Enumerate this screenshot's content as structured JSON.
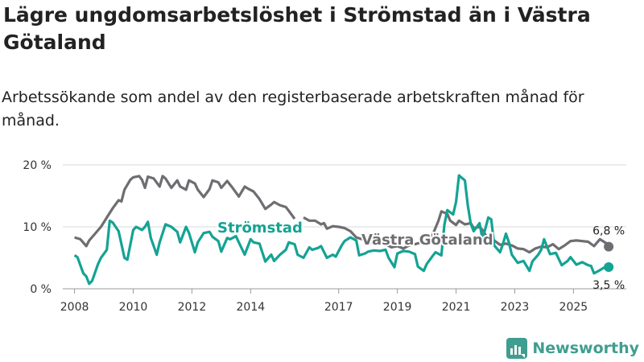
{
  "header": {
    "title": "Lägre ungdomsarbetslöshet i Strömstad än i Västra Götaland",
    "subtitle": "Arbetssökande som andel av den registerbaserade arbetskraften månad för månad."
  },
  "brand": {
    "name": "Newsworthy"
  },
  "colors": {
    "stromstad": "#14a394",
    "vastra": "#6e6e72",
    "grid": "#d8d8d8"
  },
  "chart_data": {
    "type": "line",
    "title": "Lägre ungdomsarbetslöshet i Strömstad än i Västra Götaland",
    "xlabel": "",
    "ylabel": "",
    "xlim": [
      2007.6,
      2026.8
    ],
    "ylim": [
      0,
      20
    ],
    "yticks": [
      0,
      10,
      20
    ],
    "ytick_labels": [
      "0 %",
      "10 %",
      "20 %"
    ],
    "xticks": [
      2008,
      2010,
      2012,
      2014,
      2017,
      2019,
      2021,
      2023,
      2025
    ],
    "xtick_labels": [
      "2008",
      "2010",
      "2012",
      "2014",
      "2017",
      "2019",
      "2021",
      "2023",
      "2025"
    ],
    "grid": true,
    "series": [
      {
        "name": "Västra Götaland",
        "label": "Västra Götaland",
        "color": "#6e6e72",
        "end_label": "6,8 %",
        "points": [
          [
            2008.0,
            8.3
          ],
          [
            2008.2,
            8.0
          ],
          [
            2008.4,
            6.9
          ],
          [
            2008.5,
            7.8
          ],
          [
            2008.7,
            8.9
          ],
          [
            2008.9,
            10.0
          ],
          [
            2009.1,
            11.5
          ],
          [
            2009.3,
            13.0
          ],
          [
            2009.5,
            14.3
          ],
          [
            2009.6,
            14.1
          ],
          [
            2009.7,
            16.0
          ],
          [
            2009.9,
            17.6
          ],
          [
            2010.0,
            18.0
          ],
          [
            2010.2,
            18.2
          ],
          [
            2010.3,
            17.6
          ],
          [
            2010.4,
            16.3
          ],
          [
            2010.5,
            18.1
          ],
          [
            2010.7,
            17.8
          ],
          [
            2010.9,
            16.5
          ],
          [
            2011.0,
            18.2
          ],
          [
            2011.1,
            17.8
          ],
          [
            2011.3,
            16.3
          ],
          [
            2011.5,
            17.5
          ],
          [
            2011.6,
            16.5
          ],
          [
            2011.8,
            16.0
          ],
          [
            2011.9,
            17.5
          ],
          [
            2012.1,
            17.0
          ],
          [
            2012.2,
            16.0
          ],
          [
            2012.4,
            14.8
          ],
          [
            2012.6,
            16.1
          ],
          [
            2012.7,
            17.5
          ],
          [
            2012.9,
            17.2
          ],
          [
            2013.0,
            16.3
          ],
          [
            2013.2,
            17.4
          ],
          [
            2013.4,
            16.2
          ],
          [
            2013.6,
            14.9
          ],
          [
            2013.8,
            16.5
          ],
          [
            2013.9,
            16.2
          ],
          [
            2014.1,
            15.7
          ],
          [
            2014.3,
            14.5
          ],
          [
            2014.5,
            12.9
          ],
          [
            2014.7,
            13.6
          ],
          [
            2014.8,
            14.0
          ],
          [
            2015.0,
            13.5
          ],
          [
            2015.2,
            13.2
          ],
          [
            2015.3,
            12.6
          ],
          [
            2015.5,
            11.3
          ]
        ],
        "points2": [
          [
            2015.8,
            11.5
          ],
          [
            2016.0,
            11.0
          ],
          [
            2016.2,
            11.0
          ],
          [
            2016.4,
            10.4
          ],
          [
            2016.5,
            10.6
          ],
          [
            2016.6,
            9.7
          ],
          [
            2016.8,
            10.1
          ],
          [
            2017.0,
            10.0
          ],
          [
            2017.2,
            9.8
          ],
          [
            2017.4,
            9.3
          ],
          [
            2017.6,
            8.3
          ],
          [
            2017.8,
            8.0
          ],
          [
            2018.0,
            7.5
          ],
          [
            2018.2,
            7.4
          ],
          [
            2018.4,
            7.6
          ],
          [
            2018.6,
            7.2
          ],
          [
            2018.8,
            6.7
          ],
          [
            2019.0,
            6.9
          ],
          [
            2019.2,
            6.5
          ],
          [
            2019.4,
            7.0
          ],
          [
            2019.6,
            7.2
          ],
          [
            2019.8,
            7.5
          ],
          [
            2020.0,
            7.6
          ],
          [
            2020.2,
            8.7
          ],
          [
            2020.4,
            11.0
          ],
          [
            2020.5,
            12.5
          ],
          [
            2020.7,
            12.1
          ],
          [
            2020.8,
            11.0
          ],
          [
            2021.0,
            10.3
          ],
          [
            2021.1,
            11.0
          ],
          [
            2021.3,
            10.4
          ],
          [
            2021.5,
            10.6
          ],
          [
            2021.6,
            9.8
          ],
          [
            2021.8,
            10.0
          ],
          [
            2021.9,
            9.5
          ],
          [
            2022.1,
            8.0
          ],
          [
            2022.3,
            7.8
          ],
          [
            2022.5,
            7.1
          ],
          [
            2022.7,
            7.3
          ],
          [
            2022.9,
            7.0
          ],
          [
            2023.1,
            6.5
          ],
          [
            2023.3,
            6.4
          ],
          [
            2023.5,
            5.9
          ],
          [
            2023.7,
            6.5
          ],
          [
            2023.9,
            6.8
          ],
          [
            2024.1,
            6.7
          ],
          [
            2024.3,
            7.2
          ],
          [
            2024.5,
            6.4
          ],
          [
            2024.7,
            7.0
          ],
          [
            2024.9,
            7.7
          ],
          [
            2025.1,
            7.8
          ],
          [
            2025.3,
            7.7
          ],
          [
            2025.5,
            7.6
          ],
          [
            2025.7,
            6.9
          ],
          [
            2025.9,
            8.0
          ],
          [
            2026.1,
            7.4
          ],
          [
            2026.2,
            6.8
          ]
        ]
      },
      {
        "name": "Strömstad",
        "label": "Strömstad",
        "color": "#14a394",
        "end_label": "3,5 %",
        "points": [
          [
            2008.0,
            5.4
          ],
          [
            2008.1,
            5.1
          ],
          [
            2008.3,
            2.5
          ],
          [
            2008.4,
            2.0
          ],
          [
            2008.5,
            0.8
          ],
          [
            2008.6,
            1.3
          ],
          [
            2008.8,
            4.0
          ],
          [
            2008.9,
            5.0
          ],
          [
            2009.1,
            6.3
          ],
          [
            2009.2,
            11.0
          ],
          [
            2009.3,
            10.7
          ],
          [
            2009.5,
            9.3
          ],
          [
            2009.6,
            7.2
          ],
          [
            2009.7,
            5.0
          ],
          [
            2009.8,
            4.7
          ],
          [
            2010.0,
            9.5
          ],
          [
            2010.1,
            10.0
          ],
          [
            2010.3,
            9.5
          ],
          [
            2010.4,
            10.0
          ],
          [
            2010.5,
            10.8
          ],
          [
            2010.6,
            8.2
          ],
          [
            2010.8,
            5.5
          ],
          [
            2010.9,
            7.5
          ],
          [
            2011.1,
            10.4
          ],
          [
            2011.3,
            10.0
          ],
          [
            2011.5,
            9.2
          ],
          [
            2011.6,
            7.5
          ],
          [
            2011.8,
            10.0
          ],
          [
            2011.9,
            9.0
          ],
          [
            2012.1,
            5.9
          ],
          [
            2012.2,
            7.5
          ],
          [
            2012.4,
            9.0
          ],
          [
            2012.6,
            9.2
          ],
          [
            2012.7,
            8.4
          ],
          [
            2012.9,
            7.7
          ],
          [
            2013.0,
            6.0
          ],
          [
            2013.2,
            8.2
          ],
          [
            2013.3,
            8.0
          ],
          [
            2013.5,
            8.5
          ],
          [
            2013.6,
            7.5
          ],
          [
            2013.8,
            5.5
          ],
          [
            2014.0,
            8.0
          ],
          [
            2014.1,
            7.5
          ],
          [
            2014.3,
            7.3
          ],
          [
            2014.5,
            4.4
          ],
          [
            2014.7,
            5.5
          ],
          [
            2014.8,
            4.5
          ],
          [
            2015.0,
            5.5
          ],
          [
            2015.2,
            6.3
          ],
          [
            2015.3,
            7.5
          ],
          [
            2015.5,
            7.2
          ],
          [
            2015.6,
            5.5
          ],
          [
            2015.8,
            5.0
          ],
          [
            2016.0,
            6.7
          ],
          [
            2016.1,
            6.3
          ],
          [
            2016.3,
            6.6
          ],
          [
            2016.4,
            6.9
          ],
          [
            2016.6,
            5.0
          ],
          [
            2016.8,
            5.5
          ],
          [
            2016.9,
            5.2
          ],
          [
            2017.1,
            7.0
          ],
          [
            2017.2,
            7.7
          ],
          [
            2017.4,
            8.3
          ],
          [
            2017.6,
            7.8
          ],
          [
            2017.7,
            5.4
          ],
          [
            2017.9,
            5.7
          ],
          [
            2018.0,
            6.0
          ],
          [
            2018.2,
            6.2
          ],
          [
            2018.4,
            6.1
          ],
          [
            2018.6,
            6.3
          ],
          [
            2018.7,
            5.0
          ],
          [
            2018.9,
            3.5
          ],
          [
            2019.0,
            5.7
          ],
          [
            2019.2,
            6.1
          ],
          [
            2019.4,
            6.0
          ],
          [
            2019.6,
            5.6
          ],
          [
            2019.7,
            3.6
          ],
          [
            2019.9,
            2.9
          ],
          [
            2020.0,
            4.0
          ],
          [
            2020.2,
            5.3
          ],
          [
            2020.3,
            5.9
          ],
          [
            2020.5,
            5.4
          ],
          [
            2020.6,
            10.3
          ],
          [
            2020.7,
            12.7
          ],
          [
            2020.9,
            12.0
          ],
          [
            2021.0,
            14.0
          ],
          [
            2021.1,
            18.3
          ],
          [
            2021.3,
            17.5
          ],
          [
            2021.4,
            13.5
          ],
          [
            2021.5,
            10.5
          ],
          [
            2021.6,
            9.3
          ],
          [
            2021.8,
            10.6
          ],
          [
            2021.9,
            8.0
          ],
          [
            2022.1,
            11.5
          ],
          [
            2022.2,
            11.2
          ],
          [
            2022.3,
            7.0
          ],
          [
            2022.5,
            5.9
          ],
          [
            2022.6,
            7.3
          ],
          [
            2022.7,
            8.9
          ],
          [
            2022.8,
            7.5
          ],
          [
            2022.9,
            5.5
          ],
          [
            2023.1,
            4.2
          ],
          [
            2023.3,
            4.5
          ],
          [
            2023.5,
            2.9
          ],
          [
            2023.6,
            4.4
          ],
          [
            2023.8,
            5.5
          ],
          [
            2023.9,
            6.3
          ],
          [
            2024.0,
            8.0
          ],
          [
            2024.2,
            5.6
          ],
          [
            2024.4,
            5.8
          ],
          [
            2024.6,
            3.8
          ],
          [
            2024.8,
            4.5
          ],
          [
            2024.9,
            5.1
          ],
          [
            2025.1,
            3.9
          ],
          [
            2025.3,
            4.3
          ],
          [
            2025.5,
            3.8
          ],
          [
            2025.6,
            3.7
          ],
          [
            2025.7,
            2.5
          ],
          [
            2025.9,
            3.0
          ],
          [
            2026.1,
            3.6
          ],
          [
            2026.2,
            3.5
          ]
        ]
      }
    ]
  }
}
